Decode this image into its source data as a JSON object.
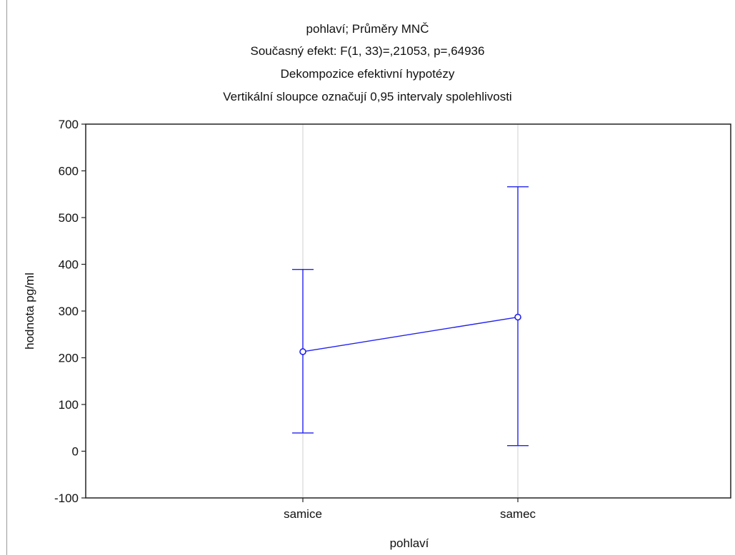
{
  "chart_data": {
    "type": "line",
    "title_lines": [
      "pohlaví; Průměry MNČ",
      "Současný efekt: F(1, 33)=,21053, p=,64936",
      "Dekompozice efektivní hypotézy",
      "Vertikální sloupce označují 0,95 intervaly spolehlivosti"
    ],
    "xlabel": "pohlaví",
    "ylabel": "hodnota pg/ml",
    "categories": [
      "samice",
      "samec"
    ],
    "series": [
      {
        "values": [
          213,
          287
        ],
        "ci_lower": [
          39,
          12
        ],
        "ci_upper": [
          389,
          566
        ],
        "color": "#2222ee"
      }
    ],
    "ylim": [
      -100,
      700
    ],
    "yticks": [
      "-100",
      "0",
      "100",
      "200",
      "300",
      "400",
      "500",
      "600",
      "700"
    ],
    "grid": true,
    "legend": "none"
  }
}
